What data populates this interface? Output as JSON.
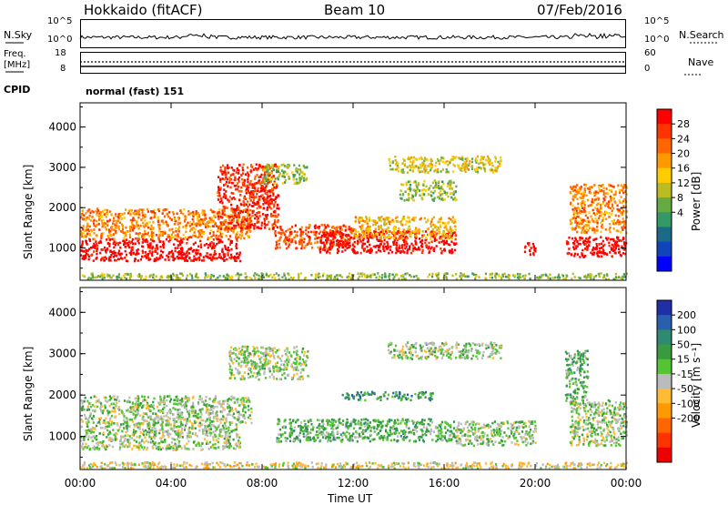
{
  "header": {
    "station": "Hokkaido (fitACF)",
    "beam": "Beam 10",
    "date": "07/Feb/2016"
  },
  "noise_panel": {
    "left_label": "N.Sky",
    "right_label": "N.Search",
    "top_tick": "10^5",
    "bottom_tick": "10^0"
  },
  "freq_panel": {
    "left_label_1": "Freq.",
    "left_label_2": "[MHz]",
    "left_ticks": [
      "18",
      "8"
    ],
    "right_label": "Nave",
    "right_ticks": [
      "60",
      "0"
    ]
  },
  "cpid": {
    "label": "CPID",
    "value": "normal (fast) 151"
  },
  "chart_data": [
    {
      "type": "heatmap",
      "name": "power",
      "ylabel": "Slant Range [km]",
      "ylim": [
        200,
        4600
      ],
      "yticks": [
        "4000",
        "3000",
        "2000",
        "1000"
      ],
      "ytick_values": [
        4000,
        3000,
        2000,
        1000
      ],
      "colorbar_label": "Power [dB]",
      "colorbar_ticks": [
        "28",
        "24",
        "20",
        "16",
        "12",
        "8",
        "4"
      ],
      "colorbar_colors": [
        "#ff0000",
        "#ff3300",
        "#ff6600",
        "#ff9900",
        "#ffcc00",
        "#bbbb22",
        "#66aa44",
        "#339966",
        "#1a6a88",
        "#1144bb",
        "#0000ff"
      ],
      "regions": [
        {
          "t0": 0.0,
          "t1": 7.0,
          "r0": 700,
          "r1": 1250,
          "level": 0
        },
        {
          "t0": 0.0,
          "t1": 7.5,
          "r0": 1250,
          "r1": 2000,
          "level": 3
        },
        {
          "t0": 6.0,
          "t1": 8.7,
          "r0": 1500,
          "r1": 3100,
          "level": 1
        },
        {
          "t0": 8.0,
          "t1": 10.0,
          "r0": 2600,
          "r1": 3100,
          "level": 6
        },
        {
          "t0": 8.5,
          "t1": 12.0,
          "r0": 1000,
          "r1": 1600,
          "level": 2
        },
        {
          "t0": 10.5,
          "t1": 16.5,
          "r0": 900,
          "r1": 1450,
          "level": 0
        },
        {
          "t0": 12.0,
          "t1": 16.5,
          "r0": 1250,
          "r1": 1800,
          "level": 4
        },
        {
          "t0": 14.0,
          "t1": 16.5,
          "r0": 2200,
          "r1": 2700,
          "level": 6
        },
        {
          "t0": 13.5,
          "t1": 18.5,
          "r0": 2900,
          "r1": 3300,
          "level": 5
        },
        {
          "t0": 19.5,
          "t1": 20.0,
          "r0": 800,
          "r1": 1150,
          "level": 0
        },
        {
          "t0": 21.3,
          "t1": 24.0,
          "r0": 800,
          "r1": 1300,
          "level": 0
        },
        {
          "t0": 21.5,
          "t1": 24.0,
          "r0": 1400,
          "r1": 2600,
          "level": 3
        },
        {
          "t0": 0.0,
          "t1": 24.0,
          "r0": 250,
          "r1": 400,
          "level": 6
        }
      ]
    },
    {
      "type": "heatmap",
      "name": "velocity",
      "ylabel": "Slant Range [km]",
      "ylim": [
        200,
        4600
      ],
      "yticks": [
        "4000",
        "3000",
        "2000",
        "1000"
      ],
      "ytick_values": [
        4000,
        3000,
        2000,
        1000
      ],
      "colorbar_label": "Velocity [m s⁻¹]",
      "colorbar_ticks": [
        "200",
        "100",
        "50",
        "15",
        "-15",
        "-50",
        "-100",
        "-200"
      ],
      "colorbar_colors": [
        "#1f2fa8",
        "#2a5fb0",
        "#2e8a70",
        "#3a9a40",
        "#55c433",
        "#bbbbbb",
        "#ffbb33",
        "#ff9900",
        "#ff6600",
        "#ff3300",
        "#ee0000"
      ],
      "regions": [
        {
          "t0": 0.0,
          "t1": 7.0,
          "r0": 700,
          "r1": 1350,
          "level": 5
        },
        {
          "t0": 0.0,
          "t1": 7.5,
          "r0": 1350,
          "r1": 2000,
          "level": 5
        },
        {
          "t0": 6.5,
          "t1": 10.0,
          "r0": 2400,
          "r1": 3200,
          "level": 5
        },
        {
          "t0": 8.5,
          "t1": 16.5,
          "r0": 900,
          "r1": 1450,
          "level": 4
        },
        {
          "t0": 11.5,
          "t1": 15.5,
          "r0": 1900,
          "r1": 2100,
          "level": 3
        },
        {
          "t0": 16.5,
          "t1": 20.0,
          "r0": 800,
          "r1": 1400,
          "level": 5
        },
        {
          "t0": 21.3,
          "t1": 22.3,
          "r0": 1800,
          "r1": 3100,
          "level": 4
        },
        {
          "t0": 21.5,
          "t1": 24.0,
          "r0": 800,
          "r1": 1900,
          "level": 5
        },
        {
          "t0": 13.5,
          "t1": 18.5,
          "r0": 2900,
          "r1": 3300,
          "level": 5
        },
        {
          "t0": 0.0,
          "t1": 24.0,
          "r0": 250,
          "r1": 400,
          "level": 6
        }
      ]
    }
  ],
  "time_axis": {
    "xlabel": "Time UT",
    "ticks": [
      "00:00",
      "04:00",
      "08:00",
      "12:00",
      "16:00",
      "20:00",
      "00:00"
    ],
    "tick_hours": [
      0,
      4,
      8,
      12,
      16,
      20,
      24
    ],
    "xlim": [
      0,
      24
    ]
  }
}
